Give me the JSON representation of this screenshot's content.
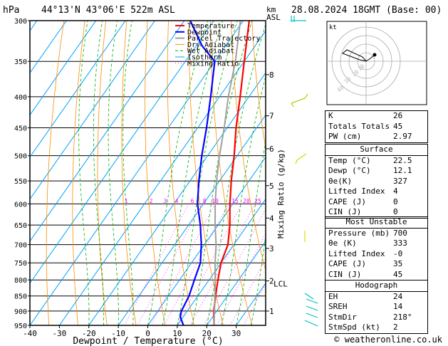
{
  "header": {
    "units": "hPa",
    "location": "44°13'N  43°06'E  522m  ASL",
    "height_units": "km",
    "height_ref": "ASL",
    "datetime": "28.08.2024  18GMT  (Base: 00)"
  },
  "chart_data": {
    "type": "line",
    "title": "Skew-T log-P diagram",
    "xlabel": "Dewpoint / Temperature (°C)",
    "ylabel": "hPa",
    "mixing_label": "Mixing Ratio (g/kg)",
    "xlim": [
      -40,
      40
    ],
    "ylim": [
      950,
      300
    ],
    "x_ticks": [
      -40,
      -30,
      -20,
      -10,
      0,
      10,
      20,
      30
    ],
    "pressure_ticks": [
      300,
      350,
      400,
      450,
      500,
      550,
      600,
      650,
      700,
      750,
      800,
      850,
      900,
      950
    ],
    "km_ticks": [
      {
        "label": "8",
        "p": 368
      },
      {
        "label": "7",
        "p": 430
      },
      {
        "label": "6",
        "p": 487
      },
      {
        "label": "5",
        "p": 560
      },
      {
        "label": "4",
        "p": 633
      },
      {
        "label": "3",
        "p": 710
      },
      {
        "label": "2",
        "p": 803
      },
      {
        "label": "1",
        "p": 900
      }
    ],
    "lcl": {
      "label": "LCL",
      "p": 812
    },
    "mixing_ratio_labels": [
      "1",
      "2",
      "3",
      "4",
      "6",
      "8",
      "10",
      "15",
      "20",
      "25"
    ],
    "legend": [
      "Temperature",
      "Dewpoint",
      "Parcel Trajectory",
      "Dry Adiabat",
      "Wet Adiabat",
      "Isotherm",
      "Mixing Ratio"
    ],
    "series": [
      {
        "name": "Temperature",
        "color": "#ff0000",
        "points": [
          [
            950,
            22.5
          ],
          [
            900,
            19
          ],
          [
            850,
            16
          ],
          [
            800,
            13
          ],
          [
            750,
            10
          ],
          [
            700,
            8
          ],
          [
            650,
            4
          ],
          [
            600,
            -1
          ],
          [
            550,
            -6
          ],
          [
            500,
            -11
          ],
          [
            450,
            -17
          ],
          [
            400,
            -23
          ],
          [
            350,
            -30
          ],
          [
            300,
            -38
          ]
        ]
      },
      {
        "name": "Dewpoint",
        "color": "#0000ff",
        "points": [
          [
            950,
            12.1
          ],
          [
            920,
            9
          ],
          [
            900,
            8
          ],
          [
            850,
            7
          ],
          [
            800,
            5
          ],
          [
            750,
            3
          ],
          [
            700,
            -1
          ],
          [
            650,
            -6
          ],
          [
            600,
            -12
          ],
          [
            550,
            -17
          ],
          [
            500,
            -22
          ],
          [
            450,
            -27
          ],
          [
            400,
            -33
          ],
          [
            350,
            -40
          ],
          [
            330,
            -48
          ],
          [
            300,
            -58
          ]
        ]
      },
      {
        "name": "Parcel Trajectory",
        "color": "#a0a0a0",
        "points": [
          [
            950,
            22.5
          ],
          [
            812,
            13
          ],
          [
            750,
            8
          ],
          [
            700,
            4
          ],
          [
            650,
            -1
          ],
          [
            600,
            -6
          ],
          [
            550,
            -11
          ],
          [
            500,
            -16
          ],
          [
            450,
            -21
          ],
          [
            400,
            -27
          ],
          [
            350,
            -33
          ],
          [
            300,
            -41
          ]
        ]
      }
    ]
  },
  "hodograph": {
    "label": "kt",
    "ring_labels": [
      "40",
      "30",
      "20",
      "10"
    ]
  },
  "indices": [
    {
      "label": "K",
      "value": "26"
    },
    {
      "label": "Totals Totals",
      "value": "45"
    },
    {
      "label": "PW (cm)",
      "value": "2.97"
    }
  ],
  "surface": {
    "title": "Surface",
    "rows": [
      {
        "label": "Temp (°C)",
        "value": "22.5"
      },
      {
        "label": "Dewp (°C)",
        "value": "12.1"
      },
      {
        "label": "θe(K)",
        "value": "327"
      },
      {
        "label": "Lifted Index",
        "value": "4"
      },
      {
        "label": "CAPE (J)",
        "value": "0"
      },
      {
        "label": "CIN (J)",
        "value": "0"
      }
    ]
  },
  "unstable": {
    "title": "Most Unstable",
    "rows": [
      {
        "label": "Pressure (mb)",
        "value": "700"
      },
      {
        "label": "θe (K)",
        "value": "333"
      },
      {
        "label": "Lifted Index",
        "value": "-0"
      },
      {
        "label": "CAPE (J)",
        "value": "35"
      },
      {
        "label": "CIN (J)",
        "value": "45"
      }
    ]
  },
  "hodograph_stats": {
    "title": "Hodograph",
    "rows": [
      {
        "label": "EH",
        "value": "24"
      },
      {
        "label": "SREH",
        "value": "14"
      },
      {
        "label": "StmDir",
        "value": "218°"
      },
      {
        "label": "StmSpd (kt)",
        "value": "2"
      }
    ]
  },
  "footer": "© weatheronline.co.uk",
  "colors": {
    "temp": "#ff0000",
    "dew": "#0000ff",
    "parcel": "#a0a0a0",
    "dry": "#ff8c00",
    "wet": "#00b000",
    "iso": "#00a0ff",
    "mix": "#ff00ff"
  }
}
